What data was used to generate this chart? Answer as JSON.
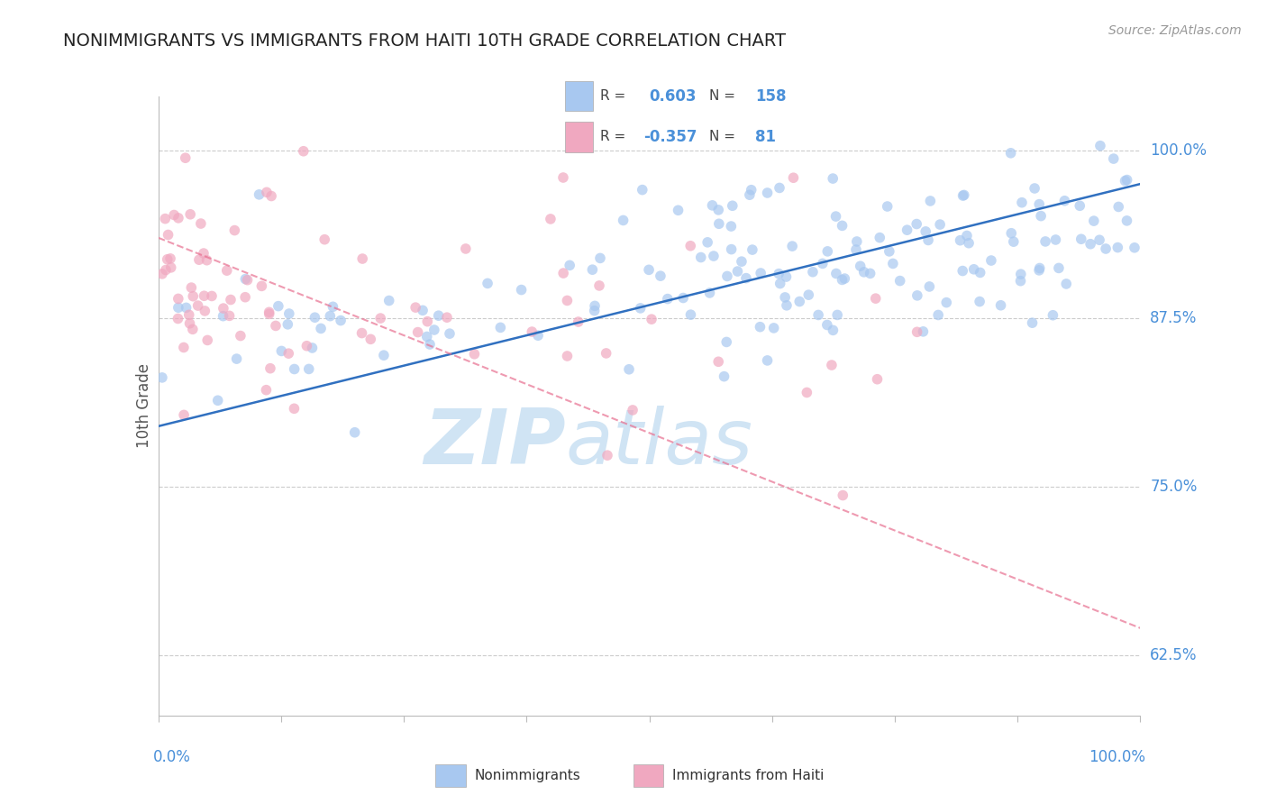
{
  "title": "NONIMMIGRANTS VS IMMIGRANTS FROM HAITI 10TH GRADE CORRELATION CHART",
  "source_text": "Source: ZipAtlas.com",
  "ylabel": "10th Grade",
  "ytick_values": [
    0.625,
    0.75,
    0.875,
    1.0
  ],
  "legend_blue_r": "0.603",
  "legend_blue_n": "158",
  "legend_pink_r": "-0.357",
  "legend_pink_n": "81",
  "legend_label_blue": "Nonimmigrants",
  "legend_label_pink": "Immigrants from Haiti",
  "blue_color": "#a8c8f0",
  "pink_color": "#f0a8c0",
  "blue_line_color": "#3070c0",
  "pink_line_color": "#e87090",
  "background_color": "#ffffff",
  "grid_color": "#cccccc",
  "title_color": "#222222",
  "axis_label_color": "#4a90d9",
  "watermark_color": "#d0e4f4",
  "seed": 42,
  "n_blue": 158,
  "n_pink": 81,
  "r_blue": 0.603,
  "r_pink": -0.357,
  "x_range": [
    0.0,
    1.0
  ],
  "y_range": [
    0.58,
    1.04
  ],
  "blue_line_x": [
    0.0,
    1.0
  ],
  "blue_line_y": [
    0.795,
    0.975
  ],
  "pink_line_x": [
    0.0,
    1.0
  ],
  "pink_line_y": [
    0.935,
    0.645
  ]
}
